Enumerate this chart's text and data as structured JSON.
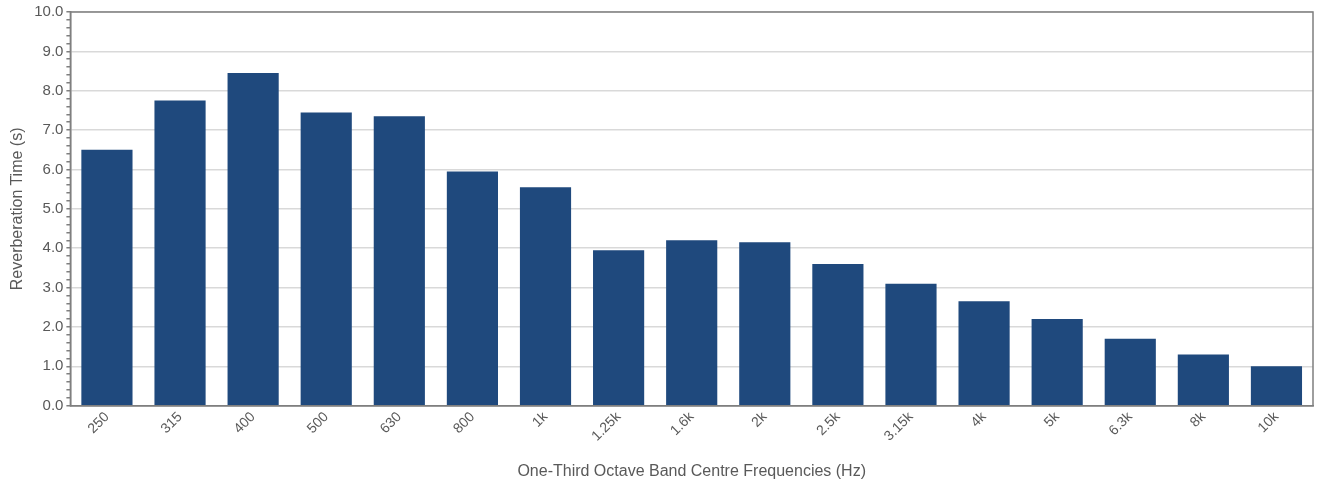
{
  "chart_data": {
    "type": "bar",
    "xlabel": "One-Third Octave Band Centre Frequencies (Hz)",
    "ylabel": "Reverberation Time (s)",
    "categories": [
      "250",
      "315",
      "400",
      "500",
      "630",
      "800",
      "1k",
      "1.25k",
      "1.6k",
      "2k",
      "2.5k",
      "3.15k",
      "4k",
      "5k",
      "6.3k",
      "8k",
      "10k"
    ],
    "values": [
      6.5,
      7.75,
      8.45,
      7.45,
      7.35,
      5.95,
      5.55,
      3.95,
      4.2,
      4.15,
      3.6,
      3.1,
      2.65,
      2.2,
      1.7,
      1.3,
      1.0
    ],
    "color": "#1f497d",
    "ylim": [
      0,
      10
    ],
    "yticks": [
      {
        "value": 0,
        "label": "0.0"
      },
      {
        "value": 0.2,
        "label": null
      },
      {
        "value": 0.4,
        "label": null
      },
      {
        "value": 0.6,
        "label": null
      },
      {
        "value": 0.8,
        "label": null
      },
      {
        "value": 1,
        "label": "1.0"
      },
      {
        "value": 1.2,
        "label": null
      },
      {
        "value": 1.4,
        "label": null
      },
      {
        "value": 1.6,
        "label": null
      },
      {
        "value": 1.8,
        "label": null
      },
      {
        "value": 2,
        "label": "2.0"
      },
      {
        "value": 2.2,
        "label": null
      },
      {
        "value": 2.4,
        "label": null
      },
      {
        "value": 2.6,
        "label": null
      },
      {
        "value": 2.8,
        "label": null
      },
      {
        "value": 3,
        "label": "3.0"
      },
      {
        "value": 3.2,
        "label": null
      },
      {
        "value": 3.4,
        "label": null
      },
      {
        "value": 3.6,
        "label": null
      },
      {
        "value": 3.8,
        "label": null
      },
      {
        "value": 4,
        "label": "4.0"
      },
      {
        "value": 4.2,
        "label": null
      },
      {
        "value": 4.4,
        "label": null
      },
      {
        "value": 4.6,
        "label": null
      },
      {
        "value": 4.8,
        "label": null
      },
      {
        "value": 5,
        "label": "5.0"
      },
      {
        "value": 5.2,
        "label": null
      },
      {
        "value": 5.4,
        "label": null
      },
      {
        "value": 5.6,
        "label": null
      },
      {
        "value": 5.8,
        "label": null
      },
      {
        "value": 6,
        "label": "6.0"
      },
      {
        "value": 6.2,
        "label": null
      },
      {
        "value": 6.4,
        "label": null
      },
      {
        "value": 6.6,
        "label": null
      },
      {
        "value": 6.8,
        "label": null
      },
      {
        "value": 7,
        "label": "7.0"
      },
      {
        "value": 7.2,
        "label": null
      },
      {
        "value": 7.4,
        "label": null
      },
      {
        "value": 7.6,
        "label": null
      },
      {
        "value": 7.8,
        "label": null
      },
      {
        "value": 8,
        "label": "8.0"
      },
      {
        "value": 8.2,
        "label": null
      },
      {
        "value": 8.4,
        "label": null
      },
      {
        "value": 8.6,
        "label": null
      },
      {
        "value": 8.8,
        "label": null
      },
      {
        "value": 9,
        "label": "9.0"
      },
      {
        "value": 9.2,
        "label": null
      },
      {
        "value": 9.4,
        "label": null
      },
      {
        "value": 9.6,
        "label": null
      },
      {
        "value": 9.8,
        "label": null
      },
      {
        "value": 10,
        "label": "10.0"
      }
    ],
    "grid": "y",
    "legend": false
  }
}
